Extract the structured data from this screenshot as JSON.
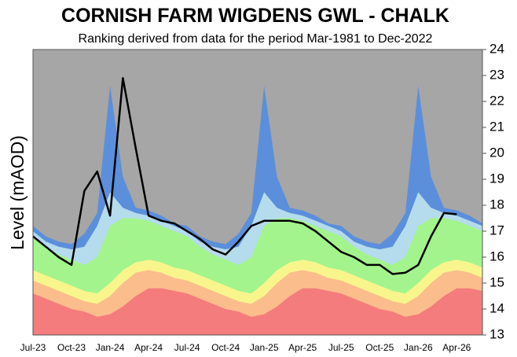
{
  "chart_data": {
    "type": "area",
    "title": "CORNISH FARM WIGDENS GWL - CHALK",
    "subtitle": "Ranking derived from data for the period Mar-1981 to Dec-2022",
    "y_label": "Level (mAOD)",
    "background": "#a6a6a6",
    "categories": [
      "Jul-23",
      null,
      null,
      "Oct-23",
      null,
      null,
      "Jan-24",
      null,
      null,
      "Apr-24",
      null,
      null,
      "Jul-24",
      null,
      null,
      "Oct-24",
      null,
      null,
      "Jan-25",
      null,
      null,
      "Apr-25",
      null,
      null,
      "Jul-25",
      null,
      null,
      "Oct-25",
      null,
      null,
      "Jan-26",
      null,
      null,
      "Apr-26",
      null,
      null
    ],
    "ylim": [
      13,
      24
    ],
    "yticks": [
      13,
      14,
      15,
      16,
      17,
      18,
      19,
      20,
      21,
      22,
      23,
      24
    ],
    "series": [
      {
        "color": "#f47c7c",
        "values": [
          14.6,
          14.4,
          14.2,
          14.0,
          13.9,
          13.7,
          13.8,
          14.1,
          14.5,
          14.8,
          14.8,
          14.7,
          14.6,
          14.4,
          14.2,
          14.0,
          13.9,
          13.7,
          13.8,
          14.1,
          14.5,
          14.8,
          14.8,
          14.7,
          14.6,
          14.4,
          14.2,
          14.0,
          13.9,
          13.7,
          13.8,
          14.1,
          14.5,
          14.8,
          14.8,
          14.7
        ]
      },
      {
        "color": "#fbbd8c",
        "values": [
          15.1,
          14.9,
          14.7,
          14.5,
          14.3,
          14.2,
          14.5,
          15.0,
          15.4,
          15.5,
          15.4,
          15.2,
          15.1,
          14.9,
          14.7,
          14.5,
          14.3,
          14.2,
          14.5,
          15.0,
          15.4,
          15.5,
          15.4,
          15.2,
          15.1,
          14.9,
          14.7,
          14.5,
          14.3,
          14.2,
          14.5,
          15.0,
          15.4,
          15.5,
          15.4,
          15.2
        ]
      },
      {
        "color": "#f8f58c",
        "values": [
          15.5,
          15.3,
          15.1,
          14.9,
          14.7,
          14.6,
          15.0,
          15.5,
          15.8,
          15.9,
          15.8,
          15.6,
          15.5,
          15.3,
          15.1,
          14.9,
          14.7,
          14.6,
          15.0,
          15.5,
          15.8,
          15.9,
          15.8,
          15.6,
          15.5,
          15.3,
          15.1,
          14.9,
          14.7,
          14.6,
          15.0,
          15.5,
          15.8,
          15.9,
          15.8,
          15.6
        ]
      },
      {
        "color": "#a3f48c",
        "values": [
          16.8,
          16.4,
          16.1,
          15.9,
          15.7,
          16.0,
          17.2,
          17.5,
          17.5,
          17.4,
          17.2,
          17.0,
          16.8,
          16.4,
          16.1,
          15.9,
          15.7,
          16.0,
          17.2,
          17.5,
          17.5,
          17.4,
          17.2,
          17.0,
          16.8,
          16.4,
          16.1,
          15.9,
          15.7,
          16.0,
          17.2,
          17.5,
          17.5,
          17.4,
          17.2,
          17.0
        ]
      },
      {
        "color": "#b5dcec",
        "values": [
          17.0,
          16.6,
          16.4,
          16.3,
          16.4,
          17.2,
          18.5,
          17.9,
          17.7,
          17.6,
          17.4,
          17.2,
          17.0,
          16.6,
          16.4,
          16.3,
          16.4,
          17.2,
          18.5,
          17.9,
          17.7,
          17.6,
          17.4,
          17.2,
          17.0,
          16.6,
          16.4,
          16.3,
          16.4,
          17.2,
          18.5,
          17.9,
          17.7,
          17.6,
          17.4,
          17.2
        ]
      },
      {
        "color": "#5b8fdb",
        "values": [
          17.2,
          16.8,
          16.6,
          16.5,
          16.9,
          17.7,
          22.6,
          19.1,
          17.9,
          17.8,
          17.6,
          17.3,
          17.2,
          16.8,
          16.6,
          16.5,
          16.9,
          17.7,
          22.6,
          19.1,
          17.9,
          17.8,
          17.6,
          17.3,
          17.2,
          16.8,
          16.6,
          16.5,
          16.9,
          17.7,
          22.6,
          19.1,
          17.9,
          17.8,
          17.6,
          17.3
        ]
      },
      {
        "type": "line",
        "color": "#000000",
        "values": [
          16.8,
          16.4,
          16.0,
          15.7,
          18.55,
          19.3,
          17.6,
          22.9,
          20.2,
          17.6,
          17.4,
          17.3,
          17.0,
          16.7,
          16.3,
          16.1,
          16.6,
          17.2,
          17.4,
          17.4,
          17.4,
          17.3,
          17.0,
          16.6,
          16.2,
          16.0,
          15.7,
          15.7,
          15.35,
          15.4,
          15.7,
          16.8,
          17.7,
          17.65,
          null,
          null
        ]
      }
    ]
  }
}
